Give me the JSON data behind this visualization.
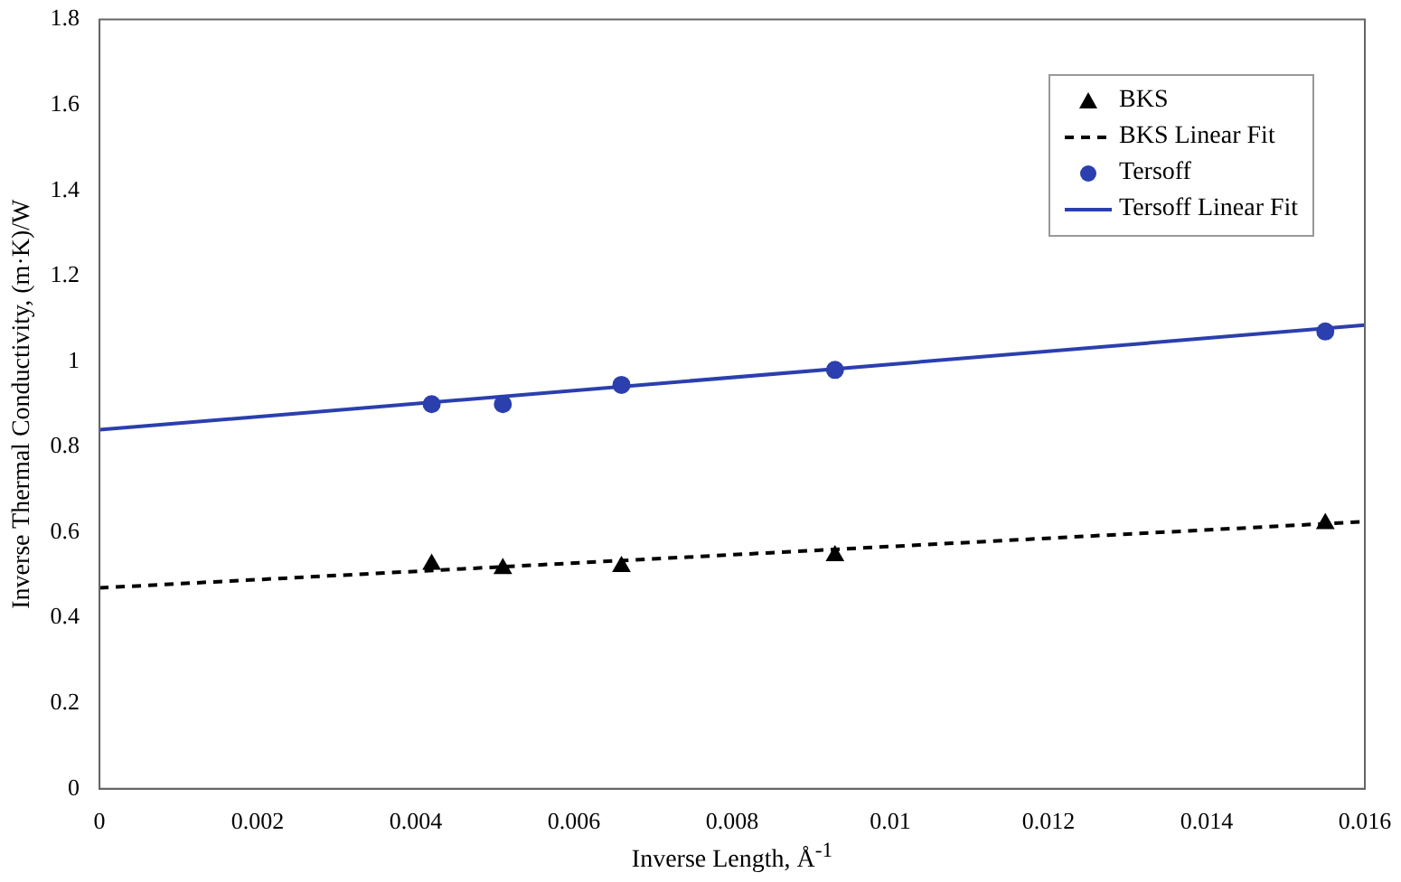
{
  "chart_data": {
    "type": "scatter",
    "xlabel": "Inverse Length, Å$^{-1}$",
    "ylabel": "Inverse Thermal Conductivity, (m·K)/W",
    "xlim": [
      0,
      0.016
    ],
    "xticks": [
      0,
      0.002,
      0.004,
      0.006,
      0.008,
      0.01,
      0.012,
      0.014,
      0.016
    ],
    "ylim": [
      0,
      1.8
    ],
    "yticks": [
      0,
      0.2,
      0.4,
      0.6,
      0.8,
      1,
      1.2,
      1.4,
      1.6,
      1.8
    ],
    "grid": false,
    "legend": "top right",
    "series": [
      {
        "name": "BKS",
        "type": "scatter",
        "marker": "triangle",
        "color": "#000000",
        "x": [
          0.0042,
          0.0051,
          0.0066,
          0.0093,
          0.0155
        ],
        "values": [
          0.525,
          0.515,
          0.52,
          0.545,
          0.62
        ]
      },
      {
        "name": "BKS Linear Fit",
        "type": "line",
        "marker": "none",
        "line_style": "dashed",
        "color": "#000000",
        "x": [
          0,
          0.016
        ],
        "values": [
          0.47,
          0.625
        ]
      },
      {
        "name": "Tersoff",
        "type": "scatter",
        "marker": "circle",
        "color": "#2b3fae",
        "x": [
          0.0042,
          0.0051,
          0.0066,
          0.0093,
          0.0155
        ],
        "values": [
          0.9,
          0.9,
          0.945,
          0.98,
          1.07
        ]
      },
      {
        "name": "Tersoff Linear Fit",
        "type": "line",
        "marker": "none",
        "line_style": "solid",
        "color": "#2b3fae",
        "x": [
          0,
          0.016
        ],
        "values": [
          0.84,
          1.085
        ]
      }
    ]
  }
}
